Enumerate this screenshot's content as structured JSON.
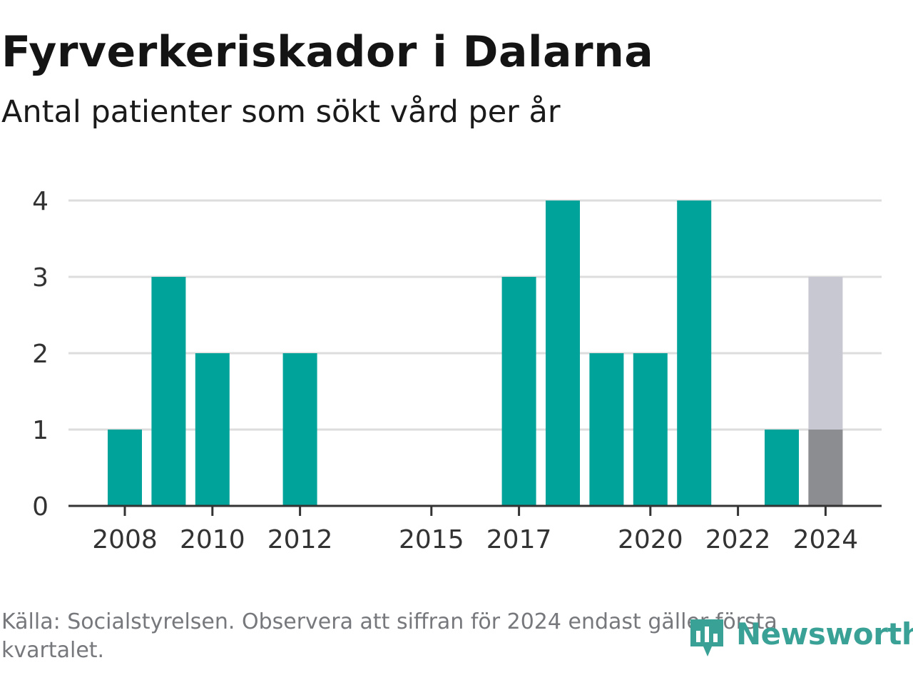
{
  "title": "Fyrverkeriskador i Dalarna",
  "subtitle": "Antal patienter som sökt vård per år",
  "footer": "Källa: Socialstyrelsen. Observera att siffran för 2024 endast gäller första kvartalet.",
  "logo": {
    "text": "Newsworthy",
    "icon": "newsworthy-logo-icon"
  },
  "colors": {
    "bar": "#00a39a",
    "bar_partial_actual": "#8c8d91",
    "bar_partial_projection": "#c8c8d3",
    "grid": "#dddddd",
    "axis": "#333333"
  },
  "chart_data": {
    "type": "bar",
    "title": "Fyrverkeriskador i Dalarna",
    "subtitle": "Antal patienter som sökt vård per år",
    "xlabel": "",
    "ylabel": "",
    "years": [
      2008,
      2009,
      2010,
      2011,
      2012,
      2013,
      2014,
      2015,
      2016,
      2017,
      2018,
      2019,
      2020,
      2021,
      2022,
      2023,
      2024
    ],
    "values": [
      1,
      3,
      2,
      0,
      2,
      0,
      0,
      0,
      0,
      3,
      4,
      2,
      2,
      4,
      0,
      1,
      1
    ],
    "projection_2024": 3,
    "x_tick_labels": [
      "2008",
      "2010",
      "2012",
      "2015",
      "2017",
      "2020",
      "2022",
      "2024"
    ],
    "y_ticks": [
      0,
      1,
      2,
      3,
      4
    ],
    "ylim": [
      0,
      4
    ],
    "grid": true
  }
}
